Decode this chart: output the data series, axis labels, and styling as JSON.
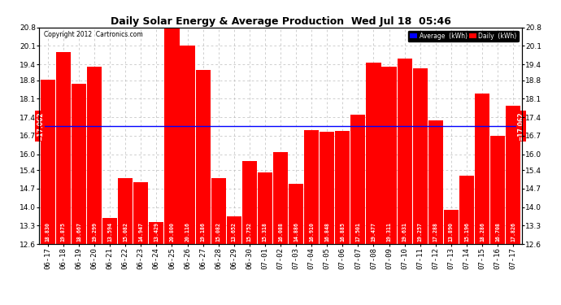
{
  "title": "Daily Solar Energy & Average Production  Wed Jul 18  05:46",
  "copyright": "Copyright 2012  Cartronics.com",
  "average_value": 17.062,
  "bar_color": "#FF0000",
  "average_line_color": "#0000FF",
  "categories": [
    "06-17",
    "06-18",
    "06-19",
    "06-20",
    "06-21",
    "06-22",
    "06-23",
    "06-24",
    "06-25",
    "06-26",
    "06-27",
    "06-28",
    "06-29",
    "06-30",
    "07-01",
    "07-02",
    "07-03",
    "07-04",
    "07-05",
    "07-06",
    "07-07",
    "07-08",
    "07-09",
    "07-10",
    "07-11",
    "07-12",
    "07-13",
    "07-14",
    "07-15",
    "07-16",
    "07-17"
  ],
  "values": [
    18.83,
    19.875,
    18.667,
    19.299,
    13.594,
    15.082,
    14.947,
    13.429,
    20.8,
    20.116,
    19.186,
    15.082,
    13.652,
    15.752,
    15.318,
    16.088,
    14.886,
    16.91,
    16.848,
    16.885,
    17.501,
    19.477,
    19.311,
    19.631,
    19.257,
    17.288,
    13.89,
    15.196,
    18.286,
    16.708,
    17.826
  ],
  "bar_labels": [
    "18.830",
    "19.875",
    "18.667",
    "19.299",
    "13.594",
    "15.082",
    "14.947",
    "13.429",
    "20.800",
    "20.116",
    "19.186",
    "15.082",
    "13.652",
    "15.752",
    "15.318",
    "16.088",
    "14.886",
    "16.910",
    "16.848",
    "16.885",
    "17.501",
    "19.477",
    "19.311",
    "19.631",
    "19.257",
    "17.288",
    "13.890",
    "15.196",
    "18.286",
    "16.708",
    "17.826"
  ],
  "ylim": [
    12.6,
    20.8
  ],
  "yticks": [
    12.6,
    13.3,
    14.0,
    14.7,
    15.4,
    16.0,
    16.7,
    17.4,
    18.1,
    18.8,
    19.4,
    20.1,
    20.8
  ],
  "legend_average_color": "#0000FF",
  "legend_daily_color": "#FF0000",
  "background_color": "#FFFFFF",
  "plot_bg_color": "#FFFFFF",
  "grid_color": "#BBBBBB"
}
